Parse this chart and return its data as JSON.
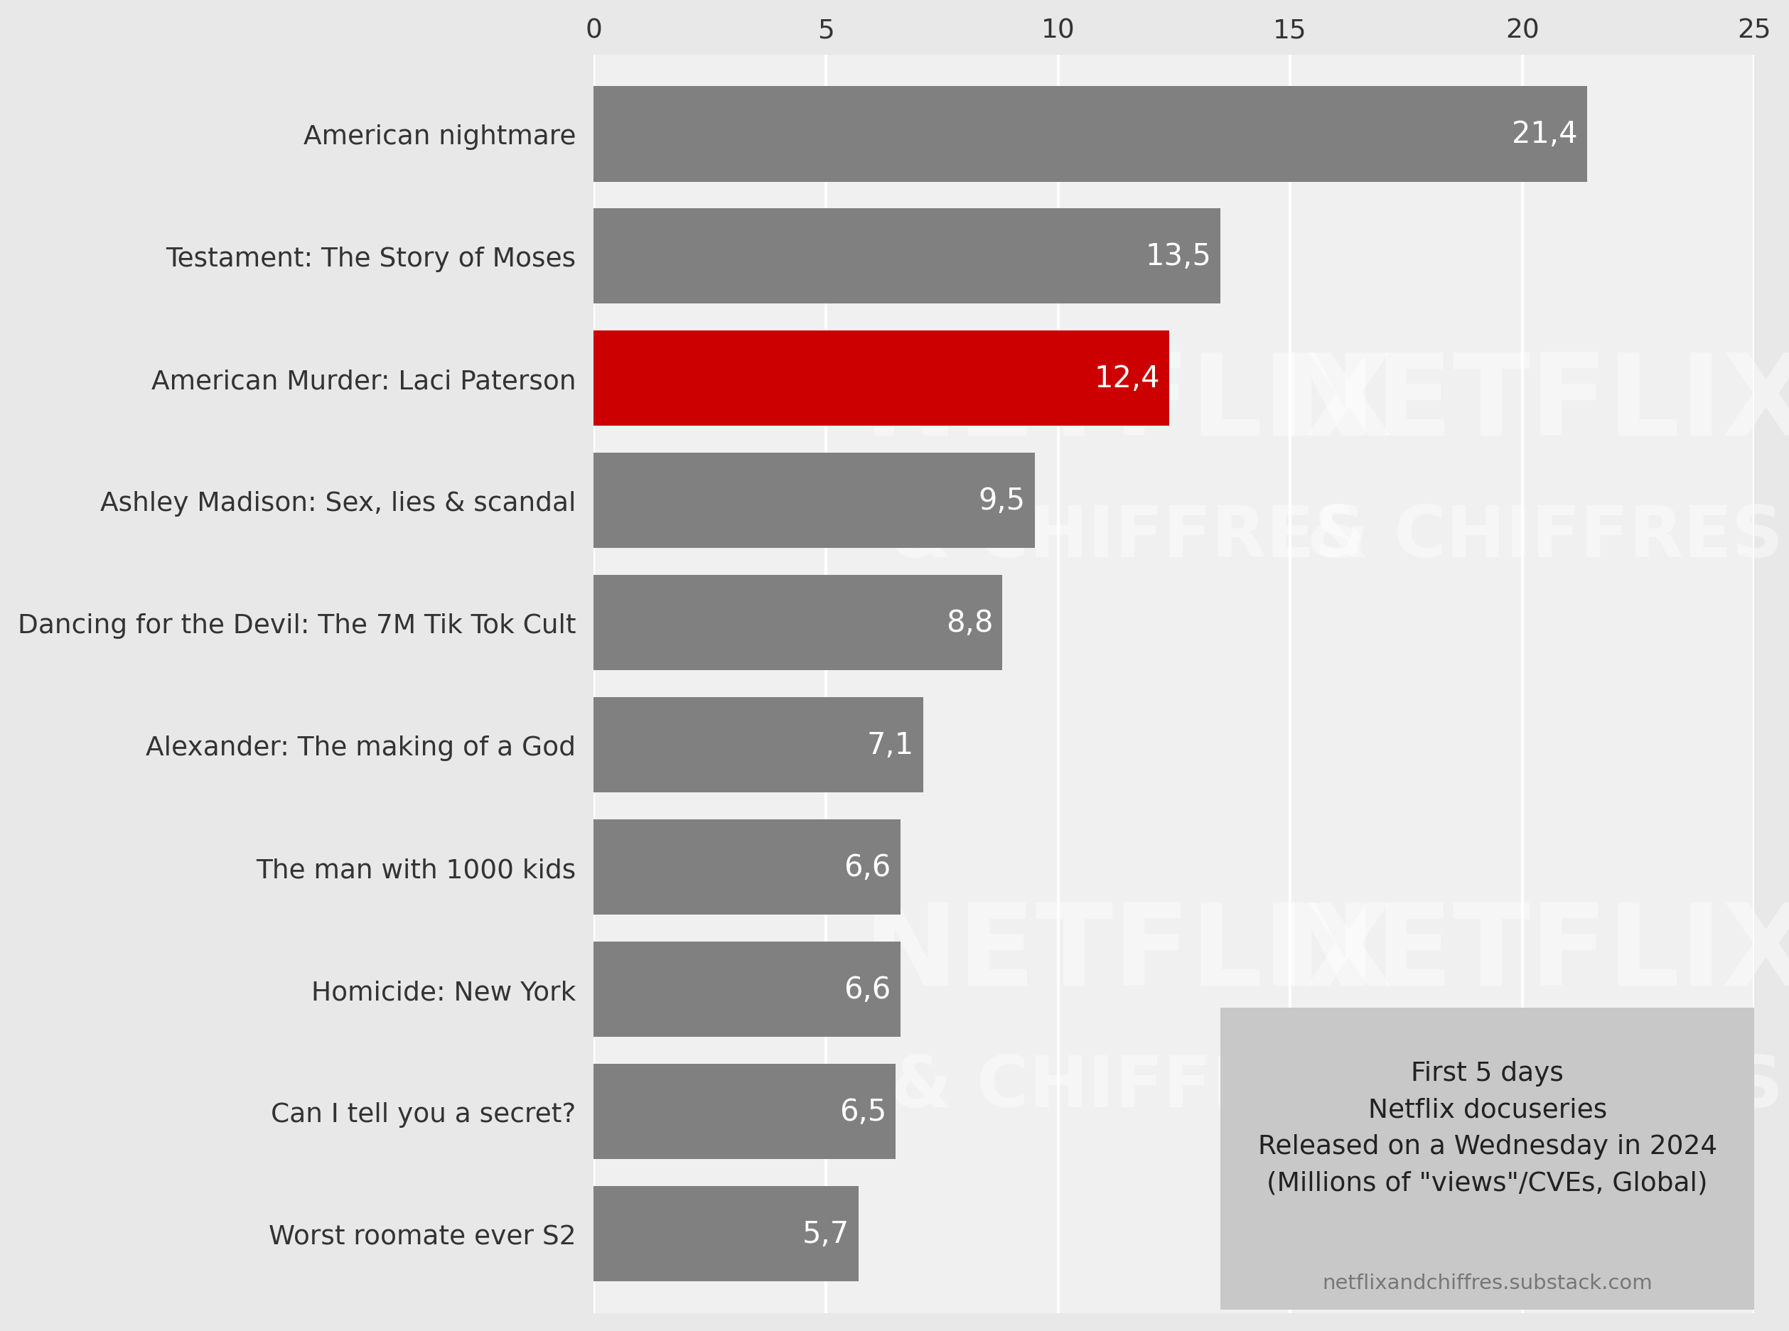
{
  "categories": [
    "Worst roomate ever S2",
    "Can I tell you a secret?",
    "Homicide: New York",
    "The man with 1000 kids",
    "Alexander: The making of a God",
    "Dancing for the Devil: The 7M Tik Tok Cult",
    "Ashley Madison: Sex, lies & scandal",
    "American Murder: Laci Paterson",
    "Testament: The Story of Moses",
    "American nightmare"
  ],
  "values": [
    5.7,
    6.5,
    6.6,
    6.6,
    7.1,
    8.8,
    9.5,
    12.4,
    13.5,
    21.4
  ],
  "bar_colors": [
    "#808080",
    "#808080",
    "#808080",
    "#808080",
    "#808080",
    "#808080",
    "#808080",
    "#CC0000",
    "#808080",
    "#808080"
  ],
  "value_labels": [
    "5,7",
    "6,5",
    "6,6",
    "6,6",
    "7,1",
    "8,8",
    "9,5",
    "12,4",
    "13,5",
    "21,4"
  ],
  "xlim": [
    0,
    25
  ],
  "xticks": [
    0,
    5,
    10,
    15,
    20,
    25
  ],
  "background_color": "#E8E8E8",
  "plot_bg_color": "#F0F0F0",
  "grid_color": "#FFFFFF",
  "label_color": "#333333",
  "watermark_text1": "NETFLIX",
  "watermark_text2": "& CHIFFRES",
  "legend_text": "First 5 days\nNetflix docuseries\nReleased on a Wednesday in 2024\n(Millions of \"views\"/CVEs, Global)",
  "legend_url": "netflixandchiffres.substack.com",
  "legend_bg": "#C8C8C8"
}
